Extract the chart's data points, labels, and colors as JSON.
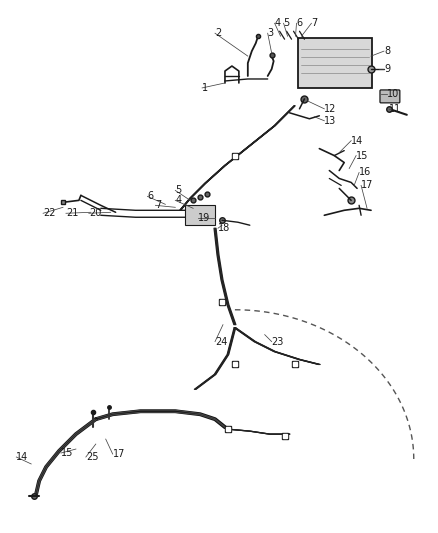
{
  "bg_color": "#ffffff",
  "line_color": "#1a1a1a",
  "label_color": "#1a1a1a",
  "label_fontsize": 7.0,
  "fig_width": 4.38,
  "fig_height": 5.33,
  "dpi": 100
}
